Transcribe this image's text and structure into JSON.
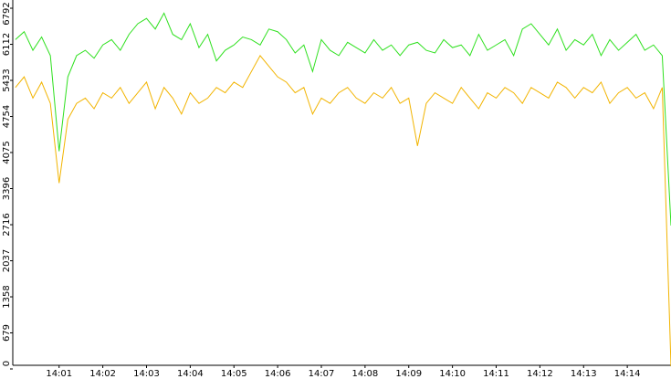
{
  "chart_data": {
    "type": "line",
    "x": [
      840,
      840.2,
      840.4,
      840.6,
      840.8,
      841,
      841.2,
      841.4,
      841.6,
      841.8,
      842,
      842.2,
      842.4,
      842.6,
      842.8,
      843,
      843.2,
      843.4,
      843.6,
      843.8,
      844,
      844.2,
      844.4,
      844.6,
      844.8,
      845,
      845.2,
      845.4,
      845.6,
      845.8,
      846,
      846.2,
      846.4,
      846.6,
      846.8,
      847,
      847.2,
      847.4,
      847.6,
      847.8,
      848,
      848.2,
      848.4,
      848.6,
      848.8,
      849,
      849.2,
      849.4,
      849.6,
      849.8,
      850,
      850.2,
      850.4,
      850.6,
      850.8,
      851,
      851.2,
      851.4,
      851.6,
      851.8,
      852,
      852.2,
      852.4,
      852.6,
      852.8,
      853,
      853.2,
      853.4,
      853.6,
      853.8,
      854,
      854.2,
      854.4,
      854.6,
      854.8,
      855
    ],
    "series": [
      {
        "color": "#2ee01e",
        "values": [
          6200,
          6350,
          6000,
          6250,
          5900,
          4100,
          5500,
          5900,
          6000,
          5850,
          6100,
          6200,
          6000,
          6300,
          6500,
          6600,
          6400,
          6700,
          6300,
          6200,
          6500,
          6050,
          6300,
          5800,
          6000,
          6100,
          6250,
          6200,
          6100,
          6400,
          6350,
          6200,
          5950,
          6100,
          5600,
          6200,
          6000,
          5900,
          6150,
          6050,
          5950,
          6200,
          6000,
          6100,
          5900,
          6100,
          6150,
          6000,
          5950,
          6200,
          6050,
          6100,
          5900,
          6300,
          6000,
          6100,
          6200,
          5900,
          6400,
          6500,
          6300,
          6100,
          6400,
          6000,
          6200,
          6100,
          6300,
          5900,
          6200,
          6000,
          6150,
          6300,
          6000,
          6100,
          5900,
          2700
        ]
      },
      {
        "color": "#f2b400",
        "values": [
          5300,
          5500,
          5100,
          5400,
          5000,
          3500,
          4700,
          5000,
          5100,
          4900,
          5200,
          5100,
          5300,
          5000,
          5200,
          5400,
          4900,
          5300,
          5100,
          4800,
          5200,
          5000,
          5100,
          5300,
          5200,
          5400,
          5300,
          5600,
          5900,
          5700,
          5500,
          5400,
          5200,
          5300,
          4800,
          5100,
          5000,
          5200,
          5300,
          5100,
          5000,
          5200,
          5100,
          5300,
          5000,
          5100,
          4200,
          5000,
          5200,
          5100,
          5000,
          5300,
          5100,
          4900,
          5200,
          5100,
          5300,
          5200,
          5000,
          5300,
          5200,
          5100,
          5400,
          5300,
          5100,
          5300,
          5200,
          5400,
          5000,
          5200,
          5300,
          5100,
          5200,
          4900,
          5300,
          50
        ]
      }
    ],
    "xlim": [
      839.94,
      855
    ],
    "xticks": [
      {
        "value": 841,
        "label": "14:01"
      },
      {
        "value": 842,
        "label": "14:02"
      },
      {
        "value": 843,
        "label": "14:03"
      },
      {
        "value": 844,
        "label": "14:04"
      },
      {
        "value": 845,
        "label": "14:05"
      },
      {
        "value": 846,
        "label": "14:06"
      },
      {
        "value": 847,
        "label": "14:07"
      },
      {
        "value": 848,
        "label": "14:08"
      },
      {
        "value": 849,
        "label": "14:09"
      },
      {
        "value": 850,
        "label": "14:10"
      },
      {
        "value": 851,
        "label": "14:11"
      },
      {
        "value": 852,
        "label": "14:12"
      },
      {
        "value": 853,
        "label": "14:13"
      },
      {
        "value": 854,
        "label": "14:14"
      }
    ],
    "ylim": [
      0,
      6792
    ],
    "yticks": [
      0,
      679,
      1358,
      2037,
      2716,
      3396,
      4075,
      4754,
      5433,
      6112,
      6792
    ]
  }
}
